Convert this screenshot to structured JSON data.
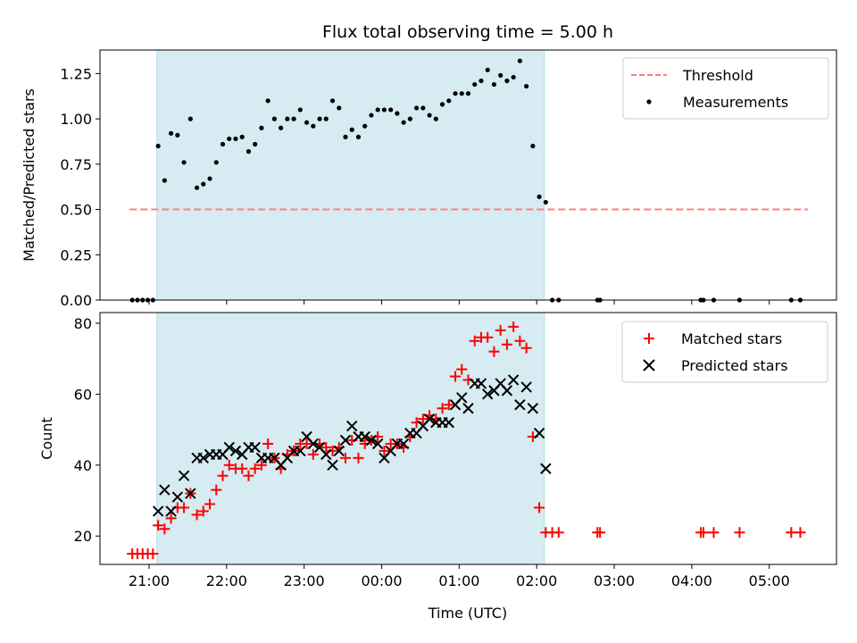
{
  "chart_data": [
    {
      "type": "scatter",
      "title": "Flux total observing time = 5.00 h",
      "xlabel": "",
      "ylabel": "Matched/Predicted stars",
      "ylim": [
        0,
        1.38
      ],
      "yticks": [
        "0.00",
        "0.25",
        "0.50",
        "0.75",
        "1.00",
        "1.25"
      ],
      "legend_position": "top-right",
      "shaded_span": {
        "start": "21:06",
        "end": "02:06",
        "color": "#add8e6"
      },
      "threshold": {
        "name": "Threshold",
        "value": 0.5,
        "x_start": "20:45",
        "x_end": "05:30",
        "color": "#ff7f7f",
        "style": "dashed"
      },
      "series": [
        {
          "name": "Measurements",
          "color": "#000000",
          "marker": "dot",
          "points": [
            [
              "20:47",
              0
            ],
            [
              "20:51",
              0
            ],
            [
              "20:55",
              0
            ],
            [
              "20:59",
              0
            ],
            [
              "21:03",
              0
            ],
            [
              "21:07",
              0.85
            ],
            [
              "21:12",
              0.66
            ],
            [
              "21:17",
              0.92
            ],
            [
              "21:22",
              0.91
            ],
            [
              "21:27",
              0.76
            ],
            [
              "21:32",
              1.0
            ],
            [
              "21:37",
              0.62
            ],
            [
              "21:42",
              0.64
            ],
            [
              "21:47",
              0.67
            ],
            [
              "21:52",
              0.76
            ],
            [
              "21:57",
              0.86
            ],
            [
              "22:02",
              0.89
            ],
            [
              "22:07",
              0.89
            ],
            [
              "22:12",
              0.9
            ],
            [
              "22:17",
              0.82
            ],
            [
              "22:22",
              0.86
            ],
            [
              "22:27",
              0.95
            ],
            [
              "22:32",
              1.1
            ],
            [
              "22:37",
              1.0
            ],
            [
              "22:42",
              0.95
            ],
            [
              "22:47",
              1.0
            ],
            [
              "22:52",
              1.0
            ],
            [
              "22:57",
              1.05
            ],
            [
              "23:02",
              0.98
            ],
            [
              "23:07",
              0.96
            ],
            [
              "23:12",
              1.0
            ],
            [
              "23:17",
              1.0
            ],
            [
              "23:22",
              1.1
            ],
            [
              "23:27",
              1.06
            ],
            [
              "23:32",
              0.9
            ],
            [
              "23:37",
              0.94
            ],
            [
              "23:42",
              0.9
            ],
            [
              "23:47",
              0.96
            ],
            [
              "23:52",
              1.02
            ],
            [
              "23:57",
              1.05
            ],
            [
              "00:02",
              1.05
            ],
            [
              "00:07",
              1.05
            ],
            [
              "00:12",
              1.03
            ],
            [
              "00:17",
              0.98
            ],
            [
              "00:22",
              1.0
            ],
            [
              "00:27",
              1.06
            ],
            [
              "00:32",
              1.06
            ],
            [
              "00:37",
              1.02
            ],
            [
              "00:42",
              1.0
            ],
            [
              "00:47",
              1.08
            ],
            [
              "00:52",
              1.1
            ],
            [
              "00:57",
              1.14
            ],
            [
              "01:02",
              1.14
            ],
            [
              "01:07",
              1.14
            ],
            [
              "01:12",
              1.19
            ],
            [
              "01:17",
              1.21
            ],
            [
              "01:22",
              1.27
            ],
            [
              "01:27",
              1.19
            ],
            [
              "01:32",
              1.24
            ],
            [
              "01:37",
              1.21
            ],
            [
              "01:42",
              1.23
            ],
            [
              "01:47",
              1.32
            ],
            [
              "01:52",
              1.18
            ],
            [
              "01:57",
              0.85
            ],
            [
              "02:02",
              0.57
            ],
            [
              "02:07",
              0.54
            ],
            [
              "02:12",
              0
            ],
            [
              "02:17",
              0
            ],
            [
              "02:47",
              0
            ],
            [
              "02:49",
              0
            ],
            [
              "04:07",
              0
            ],
            [
              "04:09",
              0
            ],
            [
              "04:17",
              0
            ],
            [
              "04:37",
              0
            ],
            [
              "05:17",
              0
            ],
            [
              "05:24",
              0
            ]
          ]
        }
      ]
    },
    {
      "type": "scatter",
      "title": "",
      "xlabel": "Time (UTC)",
      "ylabel": "Count",
      "ylim": [
        12,
        83
      ],
      "yticks": [
        "20",
        "40",
        "60",
        "80"
      ],
      "xticks": [
        "21:00",
        "22:00",
        "23:00",
        "00:00",
        "01:00",
        "02:00",
        "03:00",
        "04:00",
        "05:00"
      ],
      "xlim": [
        "20:22",
        "05:52"
      ],
      "legend_position": "top-right",
      "shaded_span": {
        "start": "21:06",
        "end": "02:06",
        "color": "#add8e6"
      },
      "series": [
        {
          "name": "Matched stars",
          "color": "#ff0000",
          "marker": "plus",
          "points": [
            [
              "20:47",
              15
            ],
            [
              "20:51",
              15
            ],
            [
              "20:55",
              15
            ],
            [
              "20:59",
              15
            ],
            [
              "21:03",
              15
            ],
            [
              "21:07",
              23
            ],
            [
              "21:12",
              22
            ],
            [
              "21:17",
              25
            ],
            [
              "21:22",
              28
            ],
            [
              "21:27",
              28
            ],
            [
              "21:32",
              32
            ],
            [
              "21:37",
              26
            ],
            [
              "21:42",
              27
            ],
            [
              "21:47",
              29
            ],
            [
              "21:52",
              33
            ],
            [
              "21:57",
              37
            ],
            [
              "22:02",
              40
            ],
            [
              "22:07",
              39
            ],
            [
              "22:12",
              39
            ],
            [
              "22:17",
              37
            ],
            [
              "22:22",
              39
            ],
            [
              "22:27",
              40
            ],
            [
              "22:32",
              46
            ],
            [
              "22:37",
              42
            ],
            [
              "22:42",
              39
            ],
            [
              "22:47",
              43
            ],
            [
              "22:52",
              44
            ],
            [
              "22:57",
              46
            ],
            [
              "23:02",
              46
            ],
            [
              "23:07",
              43
            ],
            [
              "23:12",
              46
            ],
            [
              "23:17",
              45
            ],
            [
              "23:22",
              44
            ],
            [
              "23:27",
              45
            ],
            [
              "23:32",
              42
            ],
            [
              "23:37",
              47
            ],
            [
              "23:42",
              42
            ],
            [
              "23:47",
              46
            ],
            [
              "23:52",
              47
            ],
            [
              "23:57",
              48
            ],
            [
              "00:02",
              44
            ],
            [
              "00:07",
              46
            ],
            [
              "00:12",
              46
            ],
            [
              "00:17",
              45
            ],
            [
              "00:22",
              48
            ],
            [
              "00:27",
              52
            ],
            [
              "00:32",
              53
            ],
            [
              "00:37",
              54
            ],
            [
              "00:42",
              53
            ],
            [
              "00:47",
              56
            ],
            [
              "00:52",
              57
            ],
            [
              "00:57",
              65
            ],
            [
              "01:02",
              67
            ],
            [
              "01:07",
              64
            ],
            [
              "01:12",
              75
            ],
            [
              "01:17",
              76
            ],
            [
              "01:22",
              76
            ],
            [
              "01:27",
              72
            ],
            [
              "01:32",
              78
            ],
            [
              "01:37",
              74
            ],
            [
              "01:42",
              79
            ],
            [
              "01:47",
              75
            ],
            [
              "01:52",
              73
            ],
            [
              "01:57",
              48
            ],
            [
              "02:02",
              28
            ],
            [
              "02:07",
              21
            ],
            [
              "02:12",
              21
            ],
            [
              "02:17",
              21
            ],
            [
              "02:47",
              21
            ],
            [
              "02:49",
              21
            ],
            [
              "04:07",
              21
            ],
            [
              "04:09",
              21
            ],
            [
              "04:17",
              21
            ],
            [
              "04:37",
              21
            ],
            [
              "05:17",
              21
            ],
            [
              "05:24",
              21
            ]
          ]
        },
        {
          "name": "Predicted stars",
          "color": "#000000",
          "marker": "x",
          "points": [
            [
              "21:07",
              27
            ],
            [
              "21:12",
              33
            ],
            [
              "21:17",
              27
            ],
            [
              "21:22",
              31
            ],
            [
              "21:27",
              37
            ],
            [
              "21:32",
              32
            ],
            [
              "21:37",
              42
            ],
            [
              "21:42",
              42
            ],
            [
              "21:47",
              43
            ],
            [
              "21:52",
              43
            ],
            [
              "21:57",
              43
            ],
            [
              "22:02",
              45
            ],
            [
              "22:07",
              44
            ],
            [
              "22:12",
              43
            ],
            [
              "22:17",
              45
            ],
            [
              "22:22",
              45
            ],
            [
              "22:27",
              42
            ],
            [
              "22:32",
              42
            ],
            [
              "22:37",
              42
            ],
            [
              "22:42",
              40
            ],
            [
              "22:47",
              42
            ],
            [
              "22:52",
              44
            ],
            [
              "22:57",
              44
            ],
            [
              "23:02",
              48
            ],
            [
              "23:07",
              46
            ],
            [
              "23:12",
              45
            ],
            [
              "23:17",
              43
            ],
            [
              "23:22",
              40
            ],
            [
              "23:27",
              44
            ],
            [
              "23:32",
              47
            ],
            [
              "23:37",
              51
            ],
            [
              "23:42",
              48
            ],
            [
              "23:47",
              48
            ],
            [
              "23:52",
              47
            ],
            [
              "23:57",
              46
            ],
            [
              "00:02",
              42
            ],
            [
              "00:07",
              44
            ],
            [
              "00:12",
              46
            ],
            [
              "00:17",
              46
            ],
            [
              "00:22",
              49
            ],
            [
              "00:27",
              49
            ],
            [
              "00:32",
              51
            ],
            [
              "00:37",
              53
            ],
            [
              "00:42",
              52
            ],
            [
              "00:47",
              52
            ],
            [
              "00:52",
              52
            ],
            [
              "00:57",
              57
            ],
            [
              "01:02",
              59
            ],
            [
              "01:07",
              56
            ],
            [
              "01:12",
              63
            ],
            [
              "01:17",
              63
            ],
            [
              "01:22",
              60
            ],
            [
              "01:27",
              61
            ],
            [
              "01:32",
              63
            ],
            [
              "01:37",
              61
            ],
            [
              "01:42",
              64
            ],
            [
              "01:47",
              57
            ],
            [
              "01:52",
              62
            ],
            [
              "01:57",
              56
            ],
            [
              "02:02",
              49
            ],
            [
              "02:07",
              39
            ]
          ]
        }
      ]
    }
  ]
}
